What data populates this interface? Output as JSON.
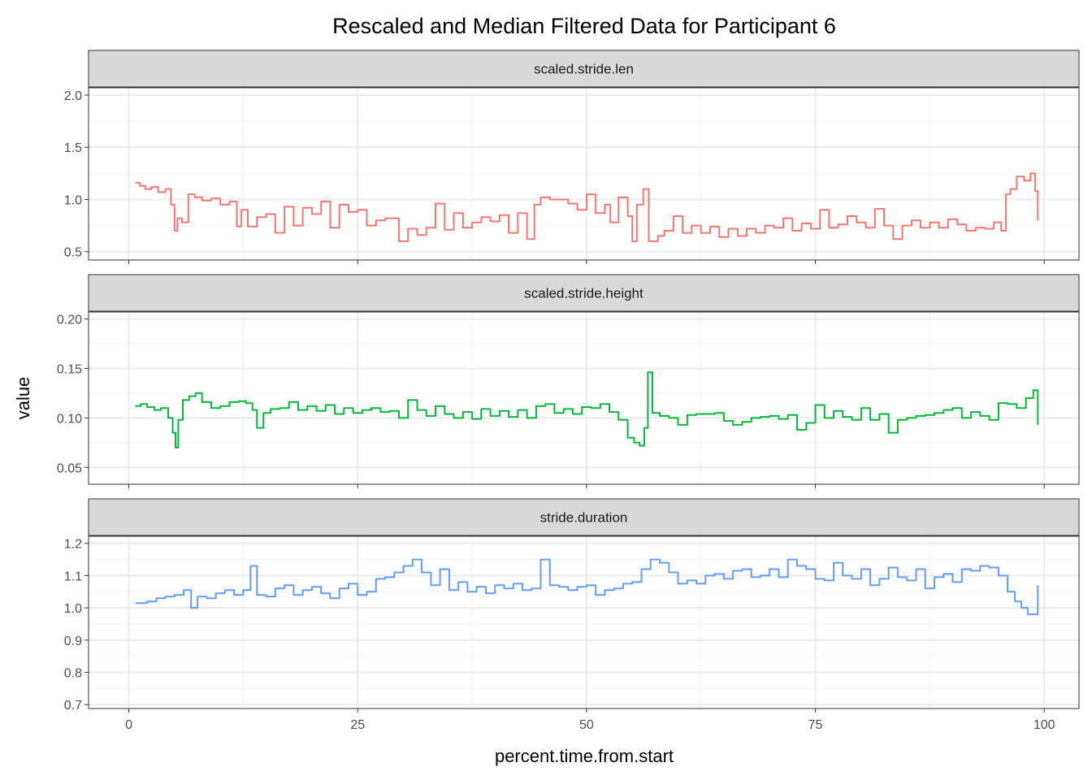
{
  "chart_data": {
    "type": "line",
    "title": "Rescaled and Median Filtered Data for Participant 6",
    "xlabel": "percent.time.from.start",
    "ylabel": "value",
    "x_ticks": [
      0,
      25,
      50,
      75,
      100
    ],
    "x_tick_labels": [
      "0",
      "25",
      "50",
      "75",
      "100"
    ],
    "xlim": [
      -4.4,
      103.8
    ],
    "grid": true,
    "panels": [
      {
        "strip": "scaled.stride.len",
        "color": "#F8766D",
        "ylim": [
          0.42,
          2.07
        ],
        "y_ticks": [
          0.5,
          1.0,
          1.5,
          2.0
        ],
        "y_tick_labels": [
          "0.5",
          "1.0",
          "1.5",
          "2.0"
        ],
        "x": [
          0.7,
          1.2,
          1.8,
          2.5,
          3.2,
          4.0,
          4.6,
          5.0,
          5.3,
          5.8,
          6.5,
          7.2,
          8.0,
          9.0,
          10.0,
          11.0,
          11.8,
          12.3,
          13.0,
          14.0,
          15.0,
          16.0,
          17.0,
          18.0,
          19.0,
          20.0,
          21.0,
          22.0,
          23.0,
          24.0,
          25.0,
          26.0,
          27.0,
          28.0,
          29.5,
          30.5,
          31.5,
          32.5,
          33.5,
          34.5,
          35.5,
          36.5,
          37.5,
          38.5,
          39.5,
          40.5,
          41.5,
          42.5,
          43.5,
          44.3,
          45.0,
          46.0,
          47.0,
          48.0,
          49.0,
          50.0,
          51.0,
          52.0,
          52.6,
          53.5,
          54.5,
          55.0,
          55.5,
          56.2,
          56.8,
          57.8,
          58.5,
          59.5,
          60.5,
          61.5,
          62.5,
          63.5,
          64.5,
          65.5,
          66.5,
          67.5,
          68.5,
          69.5,
          70.5,
          71.5,
          72.5,
          73.5,
          74.5,
          75.5,
          76.5,
          77.5,
          78.5,
          79.5,
          80.5,
          81.5,
          82.5,
          83.5,
          84.5,
          85.5,
          86.5,
          87.5,
          88.5,
          89.5,
          90.5,
          91.5,
          92.5,
          93.5,
          94.5,
          95.3,
          95.8,
          96.3,
          97.0,
          97.8,
          98.5,
          99.0,
          99.3
        ],
        "y": [
          1.16,
          1.13,
          1.1,
          1.12,
          1.07,
          1.1,
          0.95,
          0.7,
          0.82,
          0.78,
          1.05,
          1.02,
          0.99,
          1.01,
          0.95,
          0.98,
          0.74,
          0.9,
          0.74,
          0.83,
          0.86,
          0.68,
          0.93,
          0.75,
          0.92,
          0.86,
          0.98,
          0.73,
          0.95,
          0.88,
          0.9,
          0.75,
          0.8,
          0.82,
          0.6,
          0.72,
          0.66,
          0.73,
          0.96,
          0.71,
          0.87,
          0.73,
          0.78,
          0.83,
          0.79,
          0.85,
          0.68,
          0.87,
          0.62,
          0.95,
          1.02,
          1.0,
          1.0,
          0.96,
          0.9,
          1.05,
          0.87,
          0.95,
          0.78,
          1.02,
          0.84,
          0.6,
          0.95,
          1.1,
          0.6,
          0.65,
          0.7,
          0.84,
          0.68,
          0.75,
          0.68,
          0.74,
          0.64,
          0.72,
          0.65,
          0.72,
          0.68,
          0.75,
          0.73,
          0.82,
          0.7,
          0.77,
          0.72,
          0.9,
          0.73,
          0.76,
          0.84,
          0.78,
          0.73,
          0.91,
          0.75,
          0.62,
          0.75,
          0.8,
          0.73,
          0.78,
          0.73,
          0.81,
          0.76,
          0.7,
          0.73,
          0.72,
          0.78,
          0.7,
          1.05,
          1.1,
          1.22,
          1.18,
          1.25,
          1.08,
          0.8
        ]
      },
      {
        "strip": "scaled.stride.height",
        "color": "#00BA38",
        "ylim": [
          0.033,
          0.207
        ],
        "y_ticks": [
          0.05,
          0.1,
          0.15,
          0.2
        ],
        "y_tick_labels": [
          "0.05",
          "0.10",
          "0.15",
          "0.20"
        ],
        "x": [
          0.7,
          1.3,
          2.0,
          2.8,
          3.5,
          4.3,
          4.8,
          5.1,
          5.4,
          5.9,
          6.6,
          7.3,
          8.0,
          9.0,
          10.0,
          11.0,
          12.0,
          12.8,
          13.5,
          14.0,
          14.7,
          15.5,
          16.5,
          17.5,
          18.5,
          19.5,
          20.5,
          21.5,
          22.5,
          23.5,
          24.5,
          25.5,
          26.5,
          27.5,
          28.5,
          29.5,
          30.5,
          31.5,
          32.5,
          33.5,
          34.5,
          35.5,
          36.5,
          37.5,
          38.5,
          39.5,
          40.5,
          41.5,
          42.5,
          43.5,
          44.5,
          45.5,
          46.5,
          47.5,
          48.5,
          49.5,
          50.5,
          51.5,
          52.5,
          53.5,
          54.5,
          55.2,
          55.8,
          56.3,
          56.7,
          57.2,
          58.0,
          59.0,
          60.0,
          61.0,
          62.0,
          63.0,
          64.0,
          65.0,
          66.0,
          67.0,
          68.0,
          69.0,
          70.0,
          71.0,
          72.0,
          73.0,
          74.0,
          75.0,
          76.0,
          77.0,
          78.0,
          79.0,
          80.0,
          81.0,
          82.0,
          83.0,
          84.0,
          85.0,
          86.0,
          87.0,
          88.0,
          89.0,
          90.0,
          91.0,
          92.0,
          93.0,
          94.0,
          95.0,
          96.0,
          97.0,
          98.0,
          98.8,
          99.3
        ],
        "y": [
          0.112,
          0.114,
          0.111,
          0.108,
          0.11,
          0.1,
          0.085,
          0.07,
          0.098,
          0.118,
          0.122,
          0.125,
          0.116,
          0.11,
          0.112,
          0.116,
          0.117,
          0.115,
          0.108,
          0.09,
          0.105,
          0.109,
          0.11,
          0.116,
          0.108,
          0.112,
          0.107,
          0.113,
          0.104,
          0.11,
          0.105,
          0.108,
          0.11,
          0.106,
          0.107,
          0.1,
          0.118,
          0.108,
          0.102,
          0.112,
          0.104,
          0.1,
          0.106,
          0.099,
          0.109,
          0.102,
          0.107,
          0.101,
          0.108,
          0.1,
          0.112,
          0.114,
          0.105,
          0.109,
          0.104,
          0.111,
          0.11,
          0.114,
          0.106,
          0.098,
          0.08,
          0.075,
          0.072,
          0.09,
          0.146,
          0.105,
          0.102,
          0.1,
          0.093,
          0.103,
          0.104,
          0.104,
          0.105,
          0.097,
          0.093,
          0.096,
          0.1,
          0.101,
          0.102,
          0.099,
          0.103,
          0.088,
          0.095,
          0.113,
          0.1,
          0.107,
          0.101,
          0.098,
          0.11,
          0.098,
          0.104,
          0.085,
          0.098,
          0.1,
          0.102,
          0.103,
          0.105,
          0.108,
          0.11,
          0.1,
          0.106,
          0.102,
          0.098,
          0.115,
          0.114,
          0.11,
          0.12,
          0.128,
          0.093
        ]
      },
      {
        "strip": "stride.duration",
        "color": "#619CFF",
        "ylim": [
          0.688,
          1.222
        ],
        "y_ticks": [
          0.7,
          0.8,
          0.9,
          1.0,
          1.1,
          1.2
        ],
        "y_tick_labels": [
          "0.7",
          "0.8",
          "0.9",
          "1.0",
          "1.1",
          "1.2"
        ],
        "x": [
          0.7,
          2.0,
          3.0,
          4.0,
          5.0,
          6.0,
          6.8,
          7.5,
          8.5,
          9.5,
          10.5,
          11.5,
          12.5,
          13.3,
          14.0,
          15.0,
          16.0,
          17.0,
          18.0,
          19.0,
          20.0,
          21.0,
          22.0,
          23.0,
          24.0,
          25.0,
          26.0,
          27.0,
          28.0,
          29.0,
          30.0,
          31.0,
          32.0,
          33.0,
          34.0,
          35.0,
          36.0,
          37.0,
          38.0,
          39.0,
          40.0,
          41.0,
          42.0,
          43.0,
          44.0,
          45.0,
          46.0,
          47.0,
          48.0,
          49.0,
          50.0,
          51.0,
          52.0,
          53.0,
          54.0,
          55.0,
          56.0,
          57.0,
          58.0,
          59.0,
          60.0,
          61.0,
          62.0,
          63.0,
          64.0,
          65.0,
          66.0,
          67.0,
          68.0,
          69.0,
          70.0,
          71.0,
          72.0,
          73.0,
          74.0,
          75.0,
          76.0,
          77.0,
          78.0,
          79.0,
          80.0,
          81.0,
          82.0,
          83.0,
          84.0,
          85.0,
          86.0,
          87.0,
          88.0,
          89.0,
          90.0,
          91.0,
          92.0,
          93.0,
          94.0,
          95.0,
          96.0,
          96.8,
          97.5,
          98.2,
          99.0,
          99.3
        ],
        "y": [
          1.015,
          1.02,
          1.03,
          1.035,
          1.04,
          1.055,
          1.0,
          1.035,
          1.03,
          1.045,
          1.055,
          1.04,
          1.055,
          1.13,
          1.04,
          1.035,
          1.06,
          1.07,
          1.04,
          1.055,
          1.065,
          1.045,
          1.03,
          1.06,
          1.075,
          1.04,
          1.05,
          1.09,
          1.095,
          1.11,
          1.13,
          1.15,
          1.11,
          1.07,
          1.12,
          1.055,
          1.08,
          1.05,
          1.065,
          1.045,
          1.07,
          1.06,
          1.075,
          1.055,
          1.06,
          1.15,
          1.07,
          1.065,
          1.055,
          1.065,
          1.07,
          1.04,
          1.055,
          1.06,
          1.075,
          1.08,
          1.12,
          1.15,
          1.14,
          1.11,
          1.075,
          1.085,
          1.075,
          1.1,
          1.105,
          1.09,
          1.115,
          1.12,
          1.095,
          1.1,
          1.12,
          1.095,
          1.15,
          1.13,
          1.12,
          1.09,
          1.085,
          1.14,
          1.1,
          1.09,
          1.12,
          1.07,
          1.09,
          1.125,
          1.095,
          1.085,
          1.12,
          1.06,
          1.095,
          1.105,
          1.08,
          1.12,
          1.115,
          1.13,
          1.125,
          1.1,
          1.05,
          1.02,
          1.0,
          0.98,
          0.98,
          1.07
        ]
      }
    ]
  }
}
